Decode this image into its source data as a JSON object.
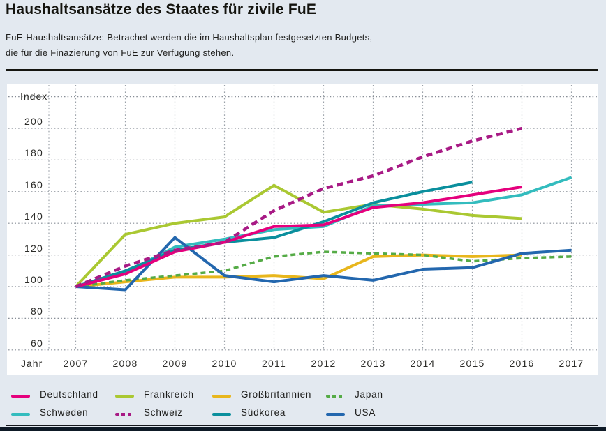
{
  "header": {
    "title": "Haushaltsansätze des Staates für zivile FuE",
    "subtitle_line1": "FuE-Haushaltsansätze: Betrachet werden die im Haushaltsplan festgesetzten Budgets,",
    "subtitle_line2": "die für die Finazierung von FuE zur Verfügung stehen."
  },
  "chart_data": {
    "type": "line",
    "title": "Haushaltsansätze des Staates für zivile FuE",
    "y_label": "Index",
    "x_label": "Jahr",
    "x": [
      2007,
      2008,
      2009,
      2010,
      2011,
      2012,
      2013,
      2014,
      2015,
      2016,
      2017
    ],
    "y_ticks": [
      200,
      180,
      160,
      140,
      120,
      100,
      80,
      60
    ],
    "y_gridlines": [
      220,
      200,
      180,
      160,
      140,
      120,
      100,
      80,
      60
    ],
    "ylim": [
      55,
      222
    ],
    "grid": "dotted",
    "legend_position": "bottom",
    "series": [
      {
        "name": "Deutschland",
        "color": "#e5007d",
        "dashed": false,
        "values": [
          100,
          108,
          122,
          128,
          138,
          139,
          150,
          153,
          158,
          163,
          null
        ]
      },
      {
        "name": "Frankreich",
        "color": "#aac832",
        "dashed": false,
        "values": [
          100,
          133,
          140,
          144,
          164,
          147,
          152,
          149,
          145,
          143,
          null
        ]
      },
      {
        "name": "Großbritannien",
        "color": "#e8b61c",
        "dashed": false,
        "values": [
          100,
          103,
          106,
          106,
          107,
          105,
          119,
          120,
          119,
          120,
          null
        ]
      },
      {
        "name": "Japan",
        "color": "#55ab46",
        "dashed": true,
        "values": [
          100,
          104,
          107,
          110,
          119,
          122,
          121,
          120,
          116,
          118,
          119
        ]
      },
      {
        "name": "Schweden",
        "color": "#33bcbe",
        "dashed": false,
        "values": [
          100,
          109,
          125,
          130,
          136,
          138,
          151,
          152,
          153,
          158,
          169
        ]
      },
      {
        "name": "Schweiz",
        "color": "#a81a85",
        "dashed": true,
        "values": [
          100,
          113,
          123,
          128,
          148,
          162,
          170,
          182,
          192,
          200,
          null
        ]
      },
      {
        "name": "Südkorea",
        "color": "#0a8f9d",
        "dashed": false,
        "values": [
          100,
          110,
          123,
          128,
          131,
          141,
          153,
          160,
          166,
          null,
          null
        ]
      },
      {
        "name": "USA",
        "color": "#2367ae",
        "dashed": false,
        "values": [
          100,
          98,
          131,
          107,
          103,
          107,
          104,
          111,
          112,
          121,
          123
        ]
      }
    ]
  },
  "legend": {
    "rows": [
      [
        "Deutschland",
        "Frankreich",
        "Großbritannien",
        "Japan"
      ],
      [
        "Schweden",
        "Schweiz",
        "Südkorea",
        "USA"
      ]
    ]
  },
  "footer": {
    "bar_color": "#0e1a26"
  }
}
